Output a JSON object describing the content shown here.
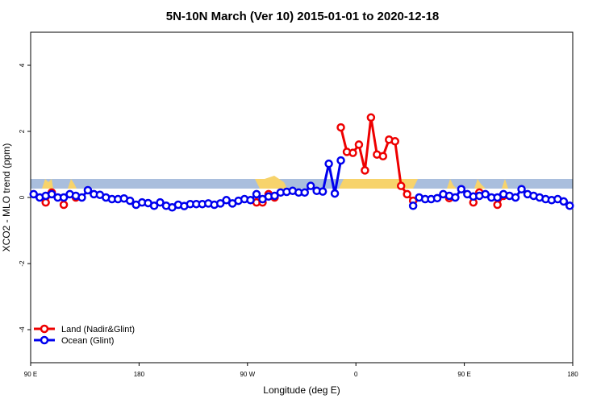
{
  "chart_data": {
    "type": "line",
    "title": "5N-10N March (Ver 10)   2015-01-01 to 2020-12-18",
    "x_label": "Longitude (deg E)",
    "y_label": "XCO2 - MLO trend (ppm)",
    "xlim": [
      90,
      540
    ],
    "xticks": [
      {
        "value": 90,
        "label": "90 E"
      },
      {
        "value": 180,
        "label": "180"
      },
      {
        "value": 270,
        "label": "90 W"
      },
      {
        "value": 360,
        "label": "0"
      },
      {
        "value": 450,
        "label": "90 E"
      },
      {
        "value": 540,
        "label": "180"
      }
    ],
    "ylim": [
      -5,
      5
    ],
    "yticks": [
      -4,
      -2,
      0,
      2,
      4
    ],
    "legend": "bottomleft",
    "x": [
      92.5,
      97.5,
      102.5,
      107.5,
      112.5,
      117.5,
      122.5,
      127.5,
      132.5,
      137.5,
      142.5,
      147.5,
      152.5,
      157.5,
      162.5,
      167.5,
      172.5,
      177.5,
      182.5,
      187.5,
      192.5,
      197.5,
      202.5,
      207.5,
      212.5,
      217.5,
      222.5,
      227.5,
      232.5,
      237.5,
      242.5,
      247.5,
      252.5,
      257.5,
      262.5,
      267.5,
      272.5,
      277.5,
      282.5,
      287.5,
      292.5,
      297.5,
      302.5,
      307.5,
      312.5,
      317.5,
      322.5,
      327.5,
      332.5,
      337.5,
      342.5,
      347.5,
      352.5,
      357.5,
      362.5,
      367.5,
      372.5,
      377.5,
      382.5,
      387.5,
      392.5,
      397.5,
      402.5,
      407.5,
      412.5,
      417.5,
      422.5,
      427.5,
      432.5,
      437.5,
      442.5,
      447.5,
      452.5,
      457.5,
      462.5,
      467.5,
      472.5,
      477.5,
      482.5,
      487.5,
      492.5,
      497.5,
      502.5,
      507.5,
      512.5,
      517.5,
      522.5,
      527.5,
      532.5,
      537.5
    ],
    "series": [
      {
        "name": "Land (Nadir&Glint)",
        "color": "#ee0000",
        "values": [
          null,
          null,
          -0.15,
          0.15,
          null,
          -0.22,
          null,
          0.0,
          null,
          null,
          null,
          null,
          null,
          null,
          null,
          null,
          null,
          null,
          null,
          null,
          null,
          null,
          null,
          null,
          null,
          null,
          null,
          null,
          null,
          null,
          null,
          null,
          null,
          null,
          null,
          null,
          null,
          -0.15,
          -0.15,
          0.1,
          0.0,
          null,
          null,
          null,
          null,
          null,
          null,
          null,
          null,
          null,
          null,
          2.12,
          1.38,
          1.35,
          1.6,
          0.82,
          2.42,
          1.3,
          1.25,
          1.75,
          1.7,
          0.35,
          0.1,
          -0.1,
          null,
          null,
          null,
          null,
          null,
          -0.02,
          null,
          null,
          null,
          -0.15,
          0.15,
          null,
          null,
          -0.22,
          0.05,
          null,
          null,
          null,
          null,
          null,
          null,
          null,
          null,
          null,
          null,
          null
        ]
      },
      {
        "name": "Ocean (Glint)",
        "color": "#0000ee",
        "values": [
          0.1,
          0.0,
          0.05,
          0.1,
          0.0,
          0.0,
          0.1,
          0.05,
          0.0,
          0.22,
          0.1,
          0.08,
          0.0,
          -0.05,
          -0.05,
          -0.03,
          -0.1,
          -0.22,
          -0.15,
          -0.17,
          -0.25,
          -0.15,
          -0.25,
          -0.3,
          -0.22,
          -0.26,
          -0.2,
          -0.2,
          -0.2,
          -0.18,
          -0.22,
          -0.18,
          -0.08,
          -0.18,
          -0.1,
          -0.05,
          -0.08,
          0.1,
          -0.05,
          0.03,
          0.05,
          0.15,
          0.17,
          0.2,
          0.15,
          0.15,
          0.35,
          0.2,
          0.18,
          1.02,
          0.12,
          1.12,
          null,
          null,
          null,
          null,
          null,
          null,
          null,
          null,
          null,
          null,
          null,
          -0.25,
          0.0,
          -0.05,
          -0.05,
          -0.02,
          0.1,
          0.05,
          0.0,
          0.25,
          0.1,
          0.03,
          0.05,
          0.1,
          0.0,
          0.0,
          0.1,
          0.05,
          0.0,
          0.25,
          0.1,
          0.05,
          0.0,
          -0.05,
          -0.08,
          -0.05,
          -0.12,
          -0.25
        ]
      }
    ]
  }
}
